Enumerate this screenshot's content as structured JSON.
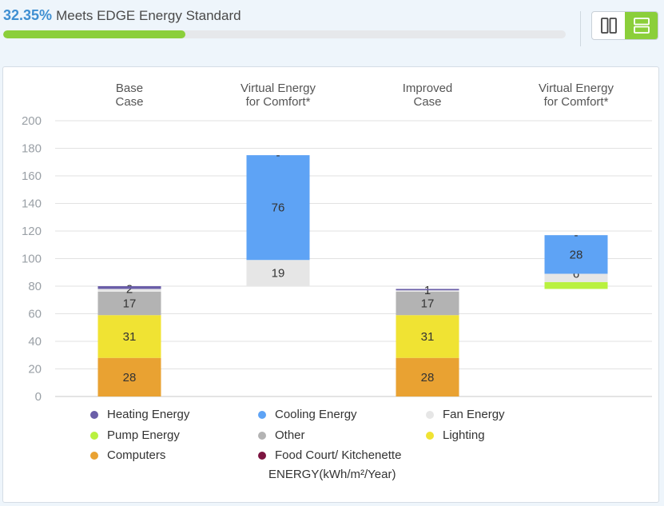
{
  "header": {
    "percent": "32.35%",
    "status_text": "Meets EDGE Energy Standard",
    "progress_percent": 32.35,
    "progress_color": "#8bcf3a"
  },
  "view_toggle": {
    "options": [
      "columns-view",
      "rows-view"
    ],
    "active": "rows-view"
  },
  "chart_data": {
    "type": "stacked-bar",
    "columns": [
      {
        "label_line1": "Base",
        "label_line2": "Case"
      },
      {
        "label_line1": "Virtual Energy",
        "label_line2": "for Comfort*"
      },
      {
        "label_line1": "Improved",
        "label_line2": "Case"
      },
      {
        "label_line1": "Virtual Energy",
        "label_line2": "for Comfort*"
      }
    ],
    "ylim": [
      0,
      200
    ],
    "yticks": [
      0,
      20,
      40,
      60,
      80,
      100,
      120,
      140,
      160,
      180,
      200
    ],
    "ylabel": "ENERGY(kWh/m²/Year)",
    "stacks": [
      {
        "base": 0,
        "segments": [
          {
            "series": "Computers",
            "value": 28,
            "label": "28"
          },
          {
            "series": "Lighting",
            "value": 31,
            "label": "31"
          },
          {
            "series": "Other",
            "value": 17,
            "label": "17"
          },
          {
            "series": "Fan Energy",
            "value": 2,
            "label": "2"
          },
          {
            "series": "Heating Energy",
            "value": 2,
            "label": ""
          }
        ]
      },
      {
        "base": 80,
        "segments": [
          {
            "series": "Fan Energy",
            "value": 19,
            "label": "19"
          },
          {
            "series": "Cooling Energy",
            "value": 76,
            "label": "76"
          },
          {
            "series": "Cooling Energy",
            "value": 0,
            "label": "-"
          }
        ]
      },
      {
        "base": 0,
        "segments": [
          {
            "series": "Computers",
            "value": 28,
            "label": "28"
          },
          {
            "series": "Lighting",
            "value": 31,
            "label": "31"
          },
          {
            "series": "Other",
            "value": 17,
            "label": "17"
          },
          {
            "series": "Fan Energy",
            "value": 1,
            "label": "1"
          },
          {
            "series": "Heating Energy",
            "value": 1,
            "label": ""
          }
        ]
      },
      {
        "base": 78,
        "segments": [
          {
            "series": "Pump Energy",
            "value": 5,
            "label": ""
          },
          {
            "series": "Fan Energy",
            "value": 6,
            "label": "6"
          },
          {
            "series": "Cooling Energy",
            "value": 28,
            "label": "28"
          },
          {
            "series": "Cooling Energy",
            "value": 0,
            "label": "-"
          }
        ]
      }
    ],
    "legend": [
      {
        "name": "Heating Energy",
        "color": "#6a5ea8"
      },
      {
        "name": "Cooling Energy",
        "color": "#5ea3f5"
      },
      {
        "name": "Fan Energy",
        "color": "#e6e6e6"
      },
      {
        "name": "Pump Energy",
        "color": "#b9f13f"
      },
      {
        "name": "Other",
        "color": "#b3b3b3"
      },
      {
        "name": "Lighting",
        "color": "#f0e333"
      },
      {
        "name": "Computers",
        "color": "#e9a232"
      },
      {
        "name": "Food Court/ Kitchenette",
        "color": "#7c1440"
      }
    ]
  }
}
